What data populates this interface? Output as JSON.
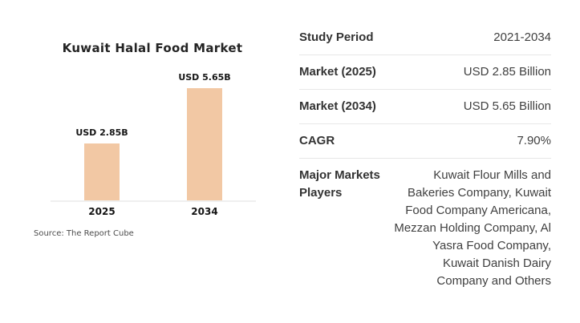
{
  "chart_data": {
    "type": "bar",
    "title": "Kuwait Halal Food Market",
    "categories": [
      "2025",
      "2034"
    ],
    "values": [
      2.85,
      5.65
    ],
    "value_labels": [
      "USD 2.85B",
      "USD 5.65B"
    ],
    "xlabel": "",
    "ylabel": "",
    "ylim": [
      0,
      5.65
    ],
    "grid": false,
    "legend": false,
    "source": "Source: The Report Cube",
    "bar_color": "#f2c8a4",
    "axis_color": "#efefef"
  },
  "table": {
    "rows": [
      {
        "label": "Study Period",
        "value": "2021-2034"
      },
      {
        "label": "Market (2025)",
        "value": "USD 2.85 Billion"
      },
      {
        "label": "Market (2034)",
        "value": "USD 5.65 Billion"
      },
      {
        "label": "CAGR",
        "value": "7.90%"
      },
      {
        "label": "Major Markets Players",
        "value": "Kuwait Flour Mills and Bakeries Company, Kuwait Food Company Americana, Mezzan Holding Company, Al Yasra Food Company, Kuwait Danish Dairy Company and Others"
      }
    ]
  },
  "colors": {
    "background": "#ffffff",
    "divider": "#e7e7e7",
    "label_text": "#333333",
    "value_text": "#404040"
  }
}
